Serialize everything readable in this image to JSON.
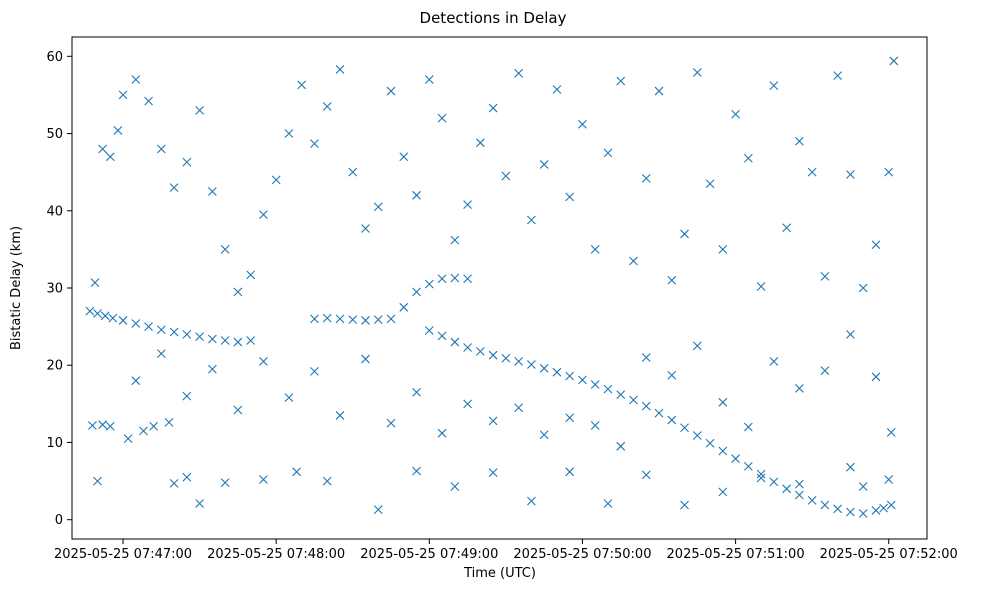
{
  "chart_data": {
    "type": "scatter",
    "title": "Detections in Delay",
    "xlabel": "Time (UTC)",
    "ylabel": "Bistatic Delay (km)",
    "x_axis_type": "time",
    "xlim": [
      "2025-05-25 07:46:40",
      "2025-05-25 07:52:15"
    ],
    "ylim": [
      -2.5,
      62.5
    ],
    "x_ticks": [
      "2025-05-25 07:47:00",
      "2025-05-25 07:48:00",
      "2025-05-25 07:49:00",
      "2025-05-25 07:50:00",
      "2025-05-25 07:51:00",
      "2025-05-25 07:52:00"
    ],
    "y_ticks": [
      0,
      10,
      20,
      30,
      40,
      50,
      60
    ],
    "marker": "x",
    "color": "#1f77b4",
    "grid": false,
    "legend": "none",
    "generated_note_removed": true,
    "series": [
      {
        "points": [
          [
            "2025-05-25 07:46:47",
            27.0
          ],
          [
            "2025-05-25 07:46:50",
            26.7
          ],
          [
            "2025-05-25 07:46:53",
            26.4
          ],
          [
            "2025-05-25 07:46:56",
            26.1
          ],
          [
            "2025-05-25 07:47:00",
            25.8
          ],
          [
            "2025-05-25 07:47:05",
            25.4
          ],
          [
            "2025-05-25 07:47:10",
            25.0
          ],
          [
            "2025-05-25 07:47:15",
            24.6
          ],
          [
            "2025-05-25 07:47:20",
            24.3
          ],
          [
            "2025-05-25 07:47:25",
            24.0
          ],
          [
            "2025-05-25 07:47:30",
            23.7
          ],
          [
            "2025-05-25 07:47:35",
            23.4
          ],
          [
            "2025-05-25 07:47:40",
            23.2
          ],
          [
            "2025-05-25 07:47:45",
            23.0
          ],
          [
            "2025-05-25 07:47:50",
            23.2
          ],
          [
            "2025-05-25 07:48:15",
            26.0
          ],
          [
            "2025-05-25 07:48:20",
            26.1
          ],
          [
            "2025-05-25 07:48:25",
            26.0
          ],
          [
            "2025-05-25 07:48:30",
            25.9
          ],
          [
            "2025-05-25 07:48:35",
            25.8
          ],
          [
            "2025-05-25 07:48:40",
            25.9
          ],
          [
            "2025-05-25 07:48:45",
            26.0
          ],
          [
            "2025-05-25 07:48:50",
            27.5
          ],
          [
            "2025-05-25 07:48:55",
            29.5
          ],
          [
            "2025-05-25 07:49:00",
            30.5
          ],
          [
            "2025-05-25 07:49:05",
            31.2
          ],
          [
            "2025-05-25 07:49:10",
            31.3
          ],
          [
            "2025-05-25 07:49:15",
            31.2
          ],
          [
            "2025-05-25 07:49:00",
            24.5
          ],
          [
            "2025-05-25 07:49:05",
            23.8
          ],
          [
            "2025-05-25 07:49:10",
            23.0
          ],
          [
            "2025-05-25 07:49:15",
            22.3
          ],
          [
            "2025-05-25 07:49:20",
            21.8
          ],
          [
            "2025-05-25 07:49:25",
            21.3
          ],
          [
            "2025-05-25 07:49:30",
            20.9
          ],
          [
            "2025-05-25 07:49:35",
            20.5
          ],
          [
            "2025-05-25 07:49:40",
            20.1
          ],
          [
            "2025-05-25 07:49:45",
            19.6
          ],
          [
            "2025-05-25 07:49:50",
            19.1
          ],
          [
            "2025-05-25 07:49:55",
            18.6
          ],
          [
            "2025-05-25 07:50:00",
            18.1
          ],
          [
            "2025-05-25 07:50:05",
            17.5
          ],
          [
            "2025-05-25 07:50:10",
            16.9
          ],
          [
            "2025-05-25 07:50:15",
            16.2
          ],
          [
            "2025-05-25 07:50:20",
            15.5
          ],
          [
            "2025-05-25 07:50:25",
            14.7
          ],
          [
            "2025-05-25 07:50:30",
            13.8
          ],
          [
            "2025-05-25 07:50:35",
            12.9
          ],
          [
            "2025-05-25 07:50:40",
            11.9
          ],
          [
            "2025-05-25 07:50:45",
            10.9
          ],
          [
            "2025-05-25 07:50:50",
            9.9
          ],
          [
            "2025-05-25 07:50:55",
            8.9
          ],
          [
            "2025-05-25 07:51:00",
            7.9
          ],
          [
            "2025-05-25 07:51:05",
            6.9
          ],
          [
            "2025-05-25 07:51:10",
            5.9
          ],
          [
            "2025-05-25 07:51:15",
            4.9
          ],
          [
            "2025-05-25 07:51:20",
            4.0
          ],
          [
            "2025-05-25 07:51:25",
            3.2
          ],
          [
            "2025-05-25 07:51:30",
            2.5
          ],
          [
            "2025-05-25 07:51:35",
            1.9
          ],
          [
            "2025-05-25 07:51:40",
            1.4
          ],
          [
            "2025-05-25 07:51:45",
            1.0
          ],
          [
            "2025-05-25 07:51:50",
            0.8
          ],
          [
            "2025-05-25 07:51:55",
            1.2
          ],
          [
            "2025-05-25 07:51:58",
            1.5
          ],
          [
            "2025-05-25 07:52:01",
            1.9
          ],
          [
            "2025-05-25 07:46:48",
            12.2
          ],
          [
            "2025-05-25 07:46:52",
            12.3
          ],
          [
            "2025-05-25 07:46:55",
            12.1
          ],
          [
            "2025-05-25 07:47:02",
            10.5
          ],
          [
            "2025-05-25 07:47:08",
            11.5
          ],
          [
            "2025-05-25 07:47:12",
            12.1
          ],
          [
            "2025-05-25 07:47:18",
            12.6
          ],
          [
            "2025-05-25 07:46:50",
            5.0
          ],
          [
            "2025-05-25 07:47:20",
            4.7
          ],
          [
            "2025-05-25 07:47:25",
            5.5
          ],
          [
            "2025-05-25 07:47:30",
            2.1
          ],
          [
            "2025-05-25 07:47:40",
            4.8
          ],
          [
            "2025-05-25 07:47:55",
            5.2
          ],
          [
            "2025-05-25 07:48:08",
            6.2
          ],
          [
            "2025-05-25 07:48:20",
            5.0
          ],
          [
            "2025-05-25 07:48:40",
            1.3
          ],
          [
            "2025-05-25 07:48:55",
            6.3
          ],
          [
            "2025-05-25 07:49:10",
            4.3
          ],
          [
            "2025-05-25 07:49:25",
            6.1
          ],
          [
            "2025-05-25 07:49:40",
            2.4
          ],
          [
            "2025-05-25 07:49:55",
            6.2
          ],
          [
            "2025-05-25 07:50:10",
            2.1
          ],
          [
            "2025-05-25 07:50:25",
            5.8
          ],
          [
            "2025-05-25 07:50:40",
            1.9
          ],
          [
            "2025-05-25 07:50:55",
            3.6
          ],
          [
            "2025-05-25 07:51:10",
            5.4
          ],
          [
            "2025-05-25 07:51:25",
            4.6
          ],
          [
            "2025-05-25 07:51:45",
            6.8
          ],
          [
            "2025-05-25 07:51:50",
            4.3
          ],
          [
            "2025-05-25 07:52:00",
            5.2
          ],
          [
            "2025-05-25 07:46:49",
            30.7
          ],
          [
            "2025-05-25 07:46:52",
            48.0
          ],
          [
            "2025-05-25 07:46:55",
            47.0
          ],
          [
            "2025-05-25 07:46:58",
            50.4
          ],
          [
            "2025-05-25 07:47:00",
            55.0
          ],
          [
            "2025-05-25 07:47:05",
            57.0
          ],
          [
            "2025-05-25 07:47:10",
            54.2
          ],
          [
            "2025-05-25 07:47:15",
            48.0
          ],
          [
            "2025-05-25 07:47:20",
            43.0
          ],
          [
            "2025-05-25 07:47:25",
            46.3
          ],
          [
            "2025-05-25 07:47:30",
            53.0
          ],
          [
            "2025-05-25 07:47:35",
            42.5
          ],
          [
            "2025-05-25 07:47:40",
            35.0
          ],
          [
            "2025-05-25 07:47:45",
            29.5
          ],
          [
            "2025-05-25 07:47:50",
            31.7
          ],
          [
            "2025-05-25 07:47:55",
            39.5
          ],
          [
            "2025-05-25 07:48:00",
            44.0
          ],
          [
            "2025-05-25 07:48:05",
            50.0
          ],
          [
            "2025-05-25 07:48:10",
            56.3
          ],
          [
            "2025-05-25 07:48:15",
            48.7
          ],
          [
            "2025-05-25 07:48:20",
            53.5
          ],
          [
            "2025-05-25 07:48:25",
            58.3
          ],
          [
            "2025-05-25 07:48:30",
            45.0
          ],
          [
            "2025-05-25 07:48:35",
            37.7
          ],
          [
            "2025-05-25 07:48:40",
            40.5
          ],
          [
            "2025-05-25 07:48:45",
            55.5
          ],
          [
            "2025-05-25 07:48:50",
            47.0
          ],
          [
            "2025-05-25 07:48:55",
            42.0
          ],
          [
            "2025-05-25 07:49:00",
            57.0
          ],
          [
            "2025-05-25 07:49:05",
            52.0
          ],
          [
            "2025-05-25 07:49:10",
            36.2
          ],
          [
            "2025-05-25 07:49:15",
            40.8
          ],
          [
            "2025-05-25 07:49:20",
            48.8
          ],
          [
            "2025-05-25 07:49:25",
            53.3
          ],
          [
            "2025-05-25 07:49:30",
            44.5
          ],
          [
            "2025-05-25 07:49:35",
            57.8
          ],
          [
            "2025-05-25 07:49:40",
            38.8
          ],
          [
            "2025-05-25 07:49:45",
            46.0
          ],
          [
            "2025-05-25 07:49:50",
            55.7
          ],
          [
            "2025-05-25 07:49:55",
            41.8
          ],
          [
            "2025-05-25 07:50:00",
            51.2
          ],
          [
            "2025-05-25 07:50:05",
            35.0
          ],
          [
            "2025-05-25 07:50:10",
            47.5
          ],
          [
            "2025-05-25 07:50:15",
            56.8
          ],
          [
            "2025-05-25 07:50:20",
            33.5
          ],
          [
            "2025-05-25 07:50:25",
            44.2
          ],
          [
            "2025-05-25 07:50:30",
            55.5
          ],
          [
            "2025-05-25 07:50:35",
            31.0
          ],
          [
            "2025-05-25 07:50:40",
            37.0
          ],
          [
            "2025-05-25 07:50:45",
            57.9
          ],
          [
            "2025-05-25 07:50:50",
            43.5
          ],
          [
            "2025-05-25 07:50:55",
            35.0
          ],
          [
            "2025-05-25 07:51:00",
            52.5
          ],
          [
            "2025-05-25 07:51:05",
            46.8
          ],
          [
            "2025-05-25 07:51:10",
            30.2
          ],
          [
            "2025-05-25 07:51:15",
            56.2
          ],
          [
            "2025-05-25 07:51:20",
            37.8
          ],
          [
            "2025-05-25 07:51:25",
            49.0
          ],
          [
            "2025-05-25 07:51:30",
            45.0
          ],
          [
            "2025-05-25 07:51:35",
            31.5
          ],
          [
            "2025-05-25 07:51:40",
            57.5
          ],
          [
            "2025-05-25 07:51:45",
            44.7
          ],
          [
            "2025-05-25 07:51:50",
            30.0
          ],
          [
            "2025-05-25 07:51:55",
            35.6
          ],
          [
            "2025-05-25 07:52:00",
            45.0
          ],
          [
            "2025-05-25 07:52:02",
            59.4
          ],
          [
            "2025-05-25 07:47:05",
            18.0
          ],
          [
            "2025-05-25 07:47:15",
            21.5
          ],
          [
            "2025-05-25 07:47:25",
            16.0
          ],
          [
            "2025-05-25 07:47:35",
            19.5
          ],
          [
            "2025-05-25 07:47:45",
            14.2
          ],
          [
            "2025-05-25 07:47:55",
            20.5
          ],
          [
            "2025-05-25 07:48:05",
            15.8
          ],
          [
            "2025-05-25 07:48:15",
            19.2
          ],
          [
            "2025-05-25 07:48:25",
            13.5
          ],
          [
            "2025-05-25 07:48:35",
            20.8
          ],
          [
            "2025-05-25 07:48:45",
            12.5
          ],
          [
            "2025-05-25 07:48:55",
            16.5
          ],
          [
            "2025-05-25 07:49:05",
            11.2
          ],
          [
            "2025-05-25 07:49:15",
            15.0
          ],
          [
            "2025-05-25 07:49:25",
            12.8
          ],
          [
            "2025-05-25 07:49:35",
            14.5
          ],
          [
            "2025-05-25 07:49:45",
            11.0
          ],
          [
            "2025-05-25 07:49:55",
            13.2
          ],
          [
            "2025-05-25 07:50:05",
            12.2
          ],
          [
            "2025-05-25 07:50:15",
            9.5
          ],
          [
            "2025-05-25 07:50:25",
            21.0
          ],
          [
            "2025-05-25 07:50:35",
            18.7
          ],
          [
            "2025-05-25 07:50:45",
            22.5
          ],
          [
            "2025-05-25 07:50:55",
            15.2
          ],
          [
            "2025-05-25 07:51:05",
            12.0
          ],
          [
            "2025-05-25 07:51:15",
            20.5
          ],
          [
            "2025-05-25 07:51:25",
            17.0
          ],
          [
            "2025-05-25 07:51:35",
            19.3
          ],
          [
            "2025-05-25 07:51:45",
            24.0
          ],
          [
            "2025-05-25 07:51:55",
            18.5
          ],
          [
            "2025-05-25 07:52:01",
            11.3
          ]
        ]
      }
    ]
  }
}
